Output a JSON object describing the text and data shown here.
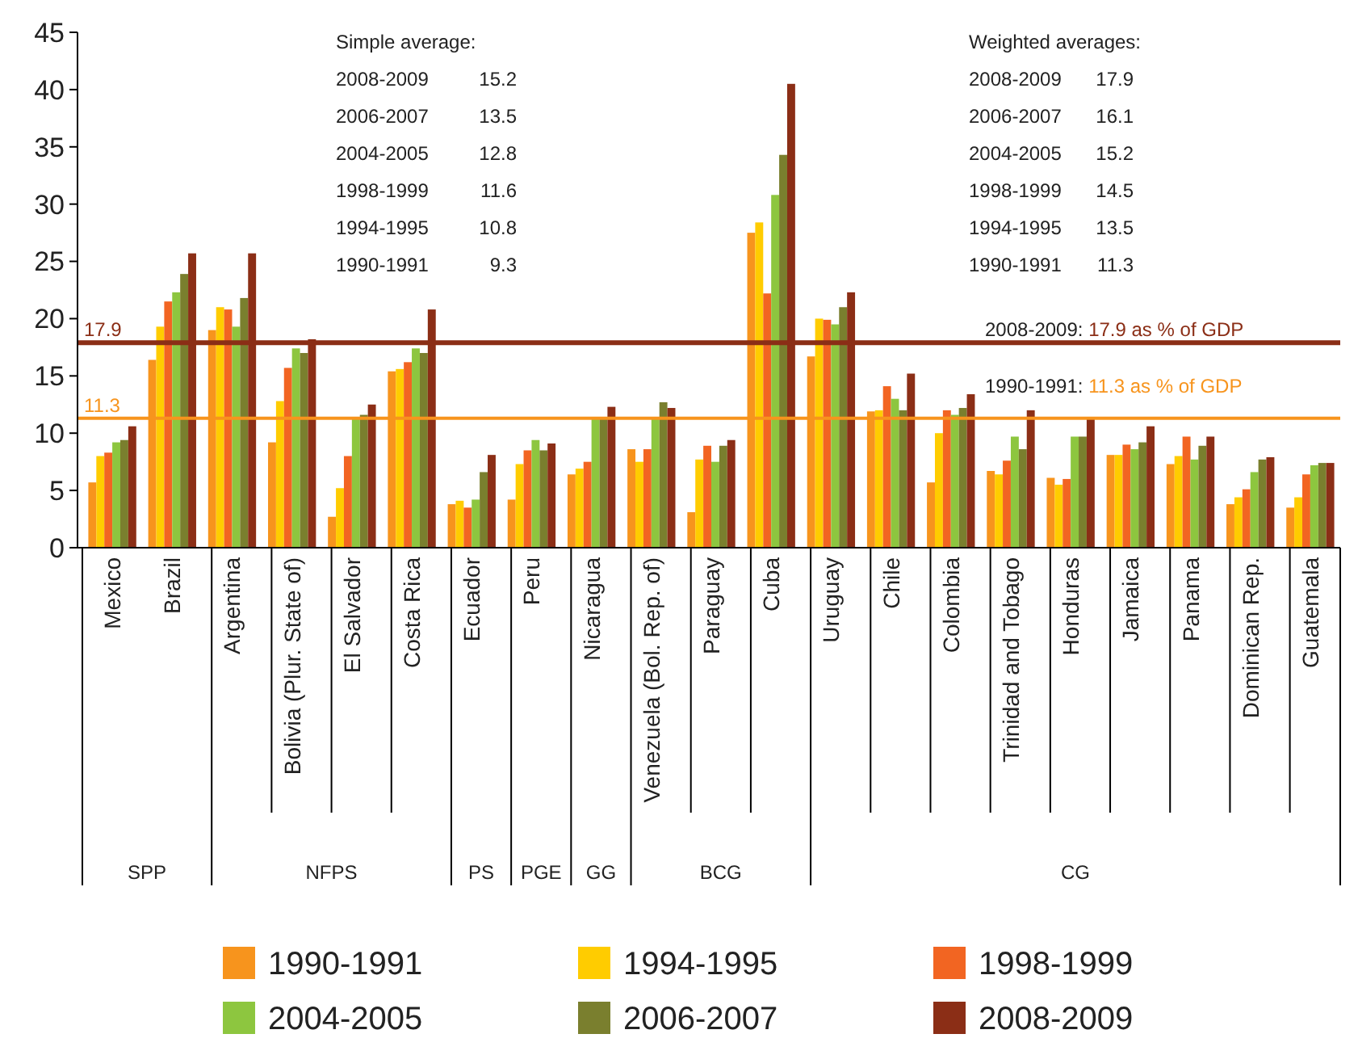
{
  "chart_data": {
    "type": "bar",
    "categories": [
      "Mexico",
      "Brazil",
      "Argentina",
      "Bolivia (Plur. State of)",
      "El Salvador",
      "Costa Rica",
      "Ecuador",
      "Peru",
      "Nicaragua",
      "Venezuela (Bol. Rep. of)",
      "Paraguay",
      "Cuba",
      "Uruguay",
      "Chile",
      "Colombia",
      "Trinidad and Tobago",
      "Honduras",
      "Jamaica",
      "Panama",
      "Dominican Rep.",
      "Guatemala"
    ],
    "series": [
      {
        "name": "1990-1991",
        "color": "#f7941d",
        "values": [
          5.7,
          16.4,
          19.0,
          9.2,
          2.7,
          15.4,
          3.8,
          4.2,
          6.4,
          8.6,
          3.1,
          27.5,
          16.7,
          11.9,
          5.7,
          6.7,
          6.1,
          8.1,
          7.3,
          3.8,
          3.5
        ]
      },
      {
        "name": "1994-1995",
        "color": "#ffcc00",
        "values": [
          8.0,
          19.3,
          21.0,
          12.8,
          5.2,
          15.6,
          4.1,
          7.3,
          6.9,
          7.5,
          7.7,
          28.4,
          20.0,
          12.0,
          10.0,
          6.4,
          5.5,
          8.1,
          8.0,
          4.4,
          4.4
        ]
      },
      {
        "name": "1998-1999",
        "color": "#f26522",
        "values": [
          8.3,
          21.5,
          20.8,
          15.7,
          8.0,
          16.2,
          3.5,
          8.5,
          7.5,
          8.6,
          8.9,
          22.2,
          19.9,
          14.1,
          12.0,
          7.6,
          6.0,
          9.0,
          9.7,
          5.1,
          6.4
        ]
      },
      {
        "name": "2004-2005",
        "color": "#8dc63f",
        "values": [
          9.2,
          22.3,
          19.3,
          17.4,
          11.4,
          17.4,
          4.2,
          9.4,
          11.3,
          11.4,
          7.5,
          30.8,
          19.5,
          13.0,
          11.6,
          9.7,
          9.7,
          8.6,
          7.7,
          6.6,
          7.2
        ]
      },
      {
        "name": "2006-2007",
        "color": "#7a7f2e",
        "values": [
          9.4,
          23.9,
          21.8,
          17.0,
          11.6,
          17.0,
          6.6,
          8.5,
          11.4,
          12.7,
          8.9,
          34.3,
          21.0,
          12.0,
          12.2,
          8.6,
          9.7,
          9.2,
          8.9,
          7.7,
          7.4
        ]
      },
      {
        "name": "2008-2009",
        "color": "#8b2e16",
        "values": [
          10.6,
          25.7,
          25.7,
          18.2,
          12.5,
          20.8,
          8.1,
          9.1,
          12.3,
          12.2,
          9.4,
          40.5,
          22.3,
          15.2,
          13.4,
          12.0,
          11.4,
          10.6,
          9.7,
          7.9,
          7.4
        ]
      }
    ],
    "ylim": [
      0,
      45
    ],
    "yticks": [
      0,
      5,
      10,
      15,
      20,
      25,
      30,
      35,
      40,
      45
    ],
    "grid": false,
    "legend": "bottom",
    "ref_lines": [
      {
        "axis": "y",
        "value": 17.9,
        "label": "17.9",
        "color": "#8b2e16"
      },
      {
        "axis": "y",
        "value": 11.3,
        "label": "11.3",
        "color": "#f7941d"
      }
    ],
    "annotations": [
      "Simple average:",
      "2008-2009 15.2",
      "2006-2007 13.5",
      "2004-2005 12.8",
      "1998-1999 11.6",
      "1994-1995 10.8",
      "1990-1991 9.3",
      "Weighted averages:",
      "2008-2009 17.9",
      "2006-2007 16.1",
      "2004-2005 15.2",
      "1998-1999 14.5",
      "1994-1995 13.5",
      "1990-1991 11.3",
      "2008-2009: 17.9 as % of GDP",
      "1990-1991: 11.3 as % of GDP",
      "SPP",
      "NFPS",
      "PS",
      "PGE",
      "GG",
      "BCG",
      "CG"
    ]
  }
}
